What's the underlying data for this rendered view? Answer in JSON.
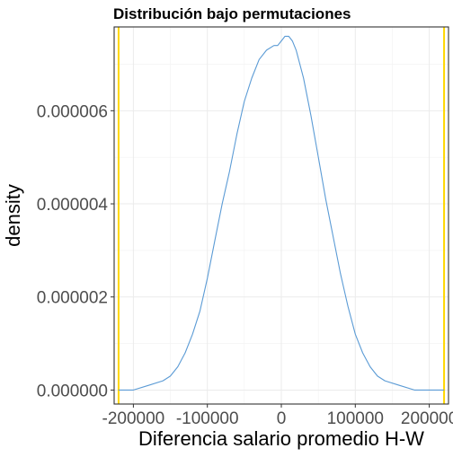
{
  "chart_data": {
    "type": "line",
    "title": "Distribución bajo permutaciones",
    "xlabel": "Diferencia salario promedio H-W",
    "ylabel": "density",
    "xlim": [
      -226000,
      226000
    ],
    "ylim": [
      -3e-07,
      7.8e-06
    ],
    "x_ticks": [
      -200000,
      -100000,
      0,
      100000,
      200000
    ],
    "x_tick_labels": [
      "-200000",
      "-100000",
      "0",
      "100000",
      "200000"
    ],
    "y_ticks": [
      0,
      2e-06,
      4e-06,
      6e-06
    ],
    "y_tick_labels": [
      "0.000000",
      "0.000002",
      "0.000004",
      "0.000006"
    ],
    "grid": true,
    "series": [
      {
        "color": "#5b9bd5",
        "x": [
          -220000,
          -200000,
          -180000,
          -160000,
          -150000,
          -140000,
          -130000,
          -120000,
          -110000,
          -100000,
          -90000,
          -80000,
          -70000,
          -60000,
          -50000,
          -40000,
          -30000,
          -20000,
          -10000,
          -5000,
          0,
          5000,
          10000,
          15000,
          20000,
          30000,
          40000,
          50000,
          60000,
          70000,
          80000,
          90000,
          100000,
          110000,
          120000,
          130000,
          140000,
          160000,
          180000,
          200000,
          220000
        ],
        "y": [
          0.0,
          0.0,
          1e-07,
          2e-07,
          3e-07,
          5e-07,
          8e-07,
          1.2e-06,
          1.7e-06,
          2.4e-06,
          3.2e-06,
          4e-06,
          4.7e-06,
          5.5e-06,
          6.2e-06,
          6.7e-06,
          7.1e-06,
          7.3e-06,
          7.4e-06,
          7.4e-06,
          7.5e-06,
          7.6e-06,
          7.6e-06,
          7.5e-06,
          7.3e-06,
          6.7e-06,
          5.9e-06,
          5e-06,
          4.1e-06,
          3.3e-06,
          2.5e-06,
          1.8e-06,
          1.2e-06,
          8e-07,
          5e-07,
          3e-07,
          2e-07,
          1e-07,
          0.0,
          0.0,
          0.0
        ]
      }
    ],
    "vlines": [
      {
        "x": -220000,
        "color": "#ffd700"
      },
      {
        "x": 220000,
        "color": "#ffd700"
      }
    ]
  }
}
